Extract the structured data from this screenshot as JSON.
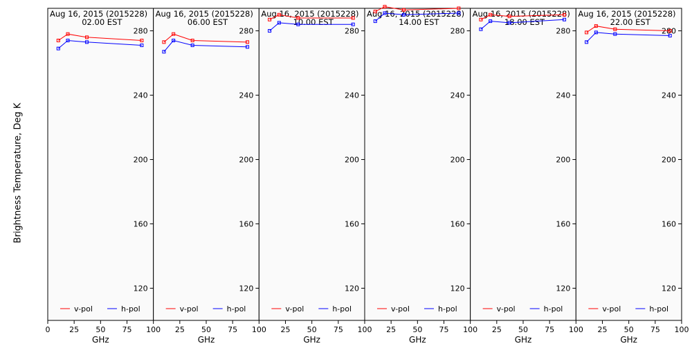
{
  "chart_data": {
    "type": "line",
    "ylabel": "Brightness Temperature, Deg K",
    "xlabel": "GHz",
    "xlim": [
      0,
      100
    ],
    "ylim": [
      100,
      294
    ],
    "xticks": [
      0,
      25,
      50,
      75,
      100
    ],
    "yticks": [
      120,
      160,
      200,
      240,
      280
    ],
    "colors": {
      "v-pol": "#ff0000",
      "h-pol": "#0000ff"
    },
    "legend": [
      "v-pol",
      "h-pol"
    ],
    "panels": [
      {
        "title": "Aug 16, 2015 (2015228)",
        "subtitle": "02.00 EST",
        "x": [
          10,
          19,
          37,
          89
        ],
        "series": [
          {
            "name": "v-pol",
            "values": [
              274,
              278,
              276,
              274
            ]
          },
          {
            "name": "h-pol",
            "values": [
              269,
              274,
              273,
              271
            ]
          }
        ]
      },
      {
        "title": "Aug 16, 2015 (2015228)",
        "subtitle": "06.00 EST",
        "x": [
          10,
          19,
          37,
          89
        ],
        "series": [
          {
            "name": "v-pol",
            "values": [
              273,
              278,
              274,
              273
            ]
          },
          {
            "name": "h-pol",
            "values": [
              267,
              274,
              271,
              270
            ]
          }
        ]
      },
      {
        "title": "Aug 16, 2015 (2015228)",
        "subtitle": "10.00 EST",
        "x": [
          10,
          19,
          37,
          89
        ],
        "series": [
          {
            "name": "v-pol",
            "values": [
              287,
              290,
              288,
              288
            ]
          },
          {
            "name": "h-pol",
            "values": [
              280,
              285,
              284,
              284
            ]
          }
        ]
      },
      {
        "title": "Aug 16, 2015 (2015228)",
        "subtitle": "14.00 EST",
        "x": [
          10,
          19,
          37,
          89
        ],
        "series": [
          {
            "name": "v-pol",
            "values": [
              292,
              295,
              293,
              294
            ]
          },
          {
            "name": "h-pol",
            "values": [
              286,
              291,
              290,
              291
            ]
          }
        ]
      },
      {
        "title": "Aug 16, 2015 (2015228)",
        "subtitle": "18.00 EST",
        "x": [
          10,
          19,
          37,
          89
        ],
        "series": [
          {
            "name": "v-pol",
            "values": [
              287,
              290,
              289,
              290
            ]
          },
          {
            "name": "h-pol",
            "values": [
              281,
              286,
              285,
              287
            ]
          }
        ]
      },
      {
        "title": "Aug 16, 2015 (2015228)",
        "subtitle": "22.00 EST",
        "x": [
          10,
          19,
          37,
          89
        ],
        "series": [
          {
            "name": "v-pol",
            "values": [
              279,
              283,
              281,
              280
            ]
          },
          {
            "name": "h-pol",
            "values": [
              273,
              279,
              278,
              277
            ]
          }
        ]
      }
    ]
  }
}
